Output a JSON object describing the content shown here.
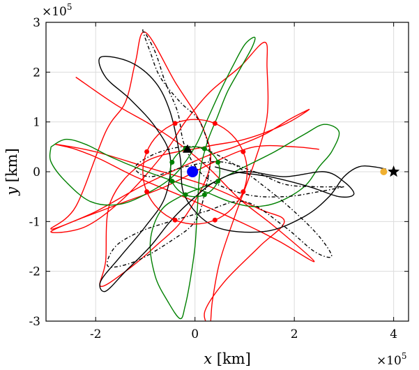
{
  "chart_data": {
    "type": "line",
    "title": "",
    "xlabel_var": "x",
    "xlabel_unit": "[km]",
    "ylabel_var": "y",
    "ylabel_unit": "[km]",
    "x_multiplier": "×10",
    "x_multiplier_exp": "5",
    "y_multiplier": "×10",
    "y_multiplier_exp": "5",
    "xlim": [
      -3,
      4.3
    ],
    "ylim": [
      -3,
      3
    ],
    "x_ticks": [
      -2,
      0,
      2,
      4
    ],
    "x_tick_labels": [
      "-2",
      "0",
      "2",
      "4"
    ],
    "y_ticks": [
      -3,
      -2,
      -1,
      0,
      1,
      2,
      3
    ],
    "y_tick_labels": [
      "-3",
      "-2",
      "-1",
      "0",
      "1",
      "2",
      "3"
    ],
    "grid": true,
    "series": [
      {
        "color": "#ff0000",
        "dash": "solid",
        "points": [
          [
            -2.4,
            1.9
          ],
          [
            -1.6,
            1.35
          ],
          [
            -0.9,
            0.95
          ],
          [
            -0.3,
            0.55
          ],
          [
            0.3,
            0.05
          ],
          [
            0.9,
            -0.55
          ],
          [
            1.6,
            -1.1
          ],
          [
            2.4,
            -1.8
          ],
          [
            1.7,
            -1.4
          ],
          [
            1.0,
            -1.05
          ],
          [
            0.0,
            -0.6
          ],
          [
            -1.2,
            -0.1
          ],
          [
            -1.9,
            0.25
          ],
          [
            -2.4,
            0.45
          ],
          [
            -2.8,
            0.55
          ],
          [
            -2.0,
            0.4
          ],
          [
            -1.0,
            0.1
          ],
          [
            0.3,
            -0.3
          ],
          [
            1.3,
            -0.75
          ],
          [
            1.8,
            -1.0
          ],
          [
            1.3,
            -1.5
          ],
          [
            0.6,
            -2.2
          ],
          [
            0.2,
            -2.8
          ],
          [
            0.3,
            -3.1
          ],
          [
            0.35,
            -2.6
          ],
          [
            0.5,
            -1.8
          ],
          [
            0.8,
            -0.9
          ],
          [
            1.2,
            0.2
          ],
          [
            1.45,
            1.1
          ],
          [
            1.45,
            2.1
          ],
          [
            1.4,
            2.6
          ],
          [
            0.9,
            2.1
          ],
          [
            0.3,
            1.6
          ],
          [
            -0.2,
            1.0
          ],
          [
            -0.6,
            0.4
          ],
          [
            -1.4,
            -0.5
          ],
          [
            -2.2,
            -1.1
          ],
          [
            -2.9,
            -1.2
          ],
          [
            -2.0,
            -0.8
          ],
          [
            -1.0,
            -0.25
          ],
          [
            0.2,
            0.3
          ],
          [
            0.8,
            0.5
          ],
          [
            1.4,
            0.75
          ],
          [
            1.9,
            1.05
          ],
          [
            2.3,
            1.25
          ],
          [
            1.8,
            0.95
          ],
          [
            1.0,
            0.65
          ],
          [
            0.2,
            0.5
          ],
          [
            -1.0,
            0.2
          ],
          [
            -1.7,
            -0.6
          ],
          [
            -1.8,
            -1.8
          ],
          [
            -1.9,
            -2.3
          ],
          [
            -1.4,
            -2.0
          ],
          [
            -0.8,
            -1.5
          ],
          [
            -0.2,
            -0.9
          ],
          [
            0.3,
            0.1
          ],
          [
            0.15,
            0.9
          ],
          [
            -0.4,
            1.8
          ],
          [
            -1.0,
            2.8
          ],
          [
            -1.2,
            2.2
          ],
          [
            -1.4,
            1.4
          ],
          [
            -1.8,
            0.8
          ],
          [
            -2.4,
            -0.7
          ],
          [
            -2.9,
            -1.15
          ],
          [
            -2.2,
            -0.9
          ],
          [
            -1.4,
            -0.6
          ],
          [
            -0.6,
            -0.3
          ],
          [
            0.4,
            0.2
          ],
          [
            1.2,
            0.5
          ],
          [
            2.0,
            0.5
          ],
          [
            2.5,
            0.45
          ]
        ]
      },
      {
        "color": "#008000",
        "dash": "solid",
        "points": [
          [
            -2.9,
            0.5
          ],
          [
            -2.6,
            0.65
          ],
          [
            -2.2,
            0.55
          ],
          [
            -1.7,
            0.3
          ],
          [
            -1.1,
            0.05
          ],
          [
            -0.4,
            -0.2
          ],
          [
            0.2,
            -0.4
          ],
          [
            0.7,
            -0.6
          ],
          [
            1.2,
            -0.7
          ],
          [
            1.7,
            -0.6
          ],
          [
            2.2,
            -0.3
          ],
          [
            2.5,
            0.1
          ],
          [
            2.75,
            0.4
          ],
          [
            2.9,
            0.8
          ],
          [
            2.6,
            0.95
          ],
          [
            2.2,
            0.75
          ],
          [
            1.6,
            0.4
          ],
          [
            0.9,
            0.05
          ],
          [
            0.3,
            -0.25
          ],
          [
            -0.3,
            -0.5
          ],
          [
            -0.7,
            -0.8
          ],
          [
            -0.9,
            -1.4
          ],
          [
            -0.8,
            -2.1
          ],
          [
            -0.55,
            -2.6
          ],
          [
            -0.3,
            -2.95
          ],
          [
            -0.2,
            -2.7
          ],
          [
            -0.1,
            -2.2
          ],
          [
            0.0,
            -1.5
          ],
          [
            0.05,
            -0.7
          ],
          [
            0.1,
            0.0
          ],
          [
            0.25,
            0.6
          ],
          [
            0.45,
            1.1
          ],
          [
            0.65,
            1.6
          ],
          [
            0.9,
            2.05
          ],
          [
            1.15,
            2.5
          ],
          [
            1.2,
            2.7
          ],
          [
            1.0,
            2.55
          ],
          [
            0.75,
            2.1
          ],
          [
            0.5,
            1.6
          ],
          [
            0.25,
            1.05
          ],
          [
            0.0,
            0.5
          ],
          [
            -0.4,
            -0.05
          ],
          [
            -0.9,
            -0.4
          ],
          [
            -1.5,
            -0.65
          ],
          [
            -2.1,
            -0.6
          ],
          [
            -2.6,
            -0.2
          ],
          [
            -2.9,
            0.2
          ],
          [
            -2.9,
            0.5
          ]
        ]
      },
      {
        "color": "#000000",
        "dash": "solid",
        "points": [
          [
            3.85,
            0.05
          ],
          [
            3.6,
            0.1
          ],
          [
            3.3,
            0.1
          ],
          [
            3.0,
            -0.1
          ],
          [
            2.7,
            -0.5
          ],
          [
            2.2,
            -0.9
          ],
          [
            1.4,
            -1.2
          ],
          [
            0.4,
            -1.1
          ],
          [
            -0.2,
            -0.5
          ],
          [
            -0.3,
            0.3
          ],
          [
            -0.5,
            1.2
          ],
          [
            -0.8,
            1.8
          ],
          [
            -1.3,
            2.2
          ],
          [
            -1.9,
            2.3
          ],
          [
            -1.8,
            1.9
          ],
          [
            -1.3,
            1.45
          ],
          [
            -0.8,
            0.9
          ],
          [
            -0.5,
            0.3
          ],
          [
            -0.6,
            -0.5
          ],
          [
            -1.0,
            -1.1
          ],
          [
            -1.5,
            -1.7
          ],
          [
            -1.9,
            -2.2
          ],
          [
            -1.8,
            -2.4
          ],
          [
            -1.4,
            -2.0
          ],
          [
            -0.9,
            -1.5
          ],
          [
            -0.5,
            -1.0
          ],
          [
            -0.1,
            -0.6
          ],
          [
            0.4,
            -0.2
          ],
          [
            1.0,
            0.0
          ],
          [
            1.8,
            -0.1
          ],
          [
            2.6,
            0.0
          ],
          [
            3.0,
            -0.2
          ],
          [
            3.2,
            -0.45
          ],
          [
            2.9,
            -0.5
          ],
          [
            2.3,
            -0.3
          ],
          [
            1.5,
            -0.1
          ],
          [
            0.8,
            0.0
          ],
          [
            0.4,
            0.1
          ]
        ]
      },
      {
        "color": "#000000",
        "dash": "dashdot",
        "points": [
          [
            3.0,
            -0.3
          ],
          [
            2.5,
            -0.4
          ],
          [
            1.8,
            -0.5
          ],
          [
            1.0,
            -0.45
          ],
          [
            0.2,
            -0.1
          ],
          [
            -0.2,
            0.5
          ],
          [
            -0.35,
            1.2
          ],
          [
            -0.6,
            1.8
          ],
          [
            -0.8,
            2.4
          ],
          [
            -1.05,
            2.85
          ],
          [
            -0.9,
            2.4
          ],
          [
            -0.7,
            1.9
          ],
          [
            -0.3,
            1.4
          ],
          [
            0.1,
            1.0
          ],
          [
            0.3,
            0.3
          ],
          [
            0.2,
            -0.4
          ],
          [
            0.0,
            -1.0
          ],
          [
            -0.5,
            -1.4
          ],
          [
            -1.2,
            -1.8
          ],
          [
            -1.75,
            -1.9
          ],
          [
            -1.6,
            -1.5
          ],
          [
            -1.1,
            -1.2
          ],
          [
            -0.5,
            -1.0
          ],
          [
            0.2,
            -0.8
          ],
          [
            1.0,
            -0.6
          ],
          [
            1.8,
            -1.1
          ],
          [
            2.4,
            -1.6
          ],
          [
            2.75,
            -1.7
          ],
          [
            2.5,
            -1.3
          ],
          [
            2.0,
            -0.8
          ],
          [
            1.4,
            -0.3
          ],
          [
            0.7,
            0.2
          ],
          [
            0.0,
            0.5
          ],
          [
            -0.7,
            0.4
          ],
          [
            -1.2,
            0.1
          ],
          [
            -0.9,
            -0.1
          ],
          [
            -0.2,
            0.1
          ],
          [
            0.5,
            0.2
          ],
          [
            1.2,
            0.0
          ],
          [
            1.8,
            -0.25
          ],
          [
            2.4,
            -0.3
          ],
          [
            3.0,
            -0.3
          ]
        ]
      }
    ],
    "circle_orbits": [
      {
        "color": "#008000",
        "radius": 0.5,
        "marker_count": 8
      },
      {
        "color": "#ff0000",
        "radius": 1.05,
        "marker_count": 8
      }
    ],
    "markers": [
      {
        "name": "central-body",
        "x": -0.05,
        "y": 0.0,
        "color": "#0000ff",
        "shape": "circle",
        "size": "large"
      },
      {
        "name": "start-triangle",
        "x": -0.15,
        "y": 0.45,
        "color": "#000000",
        "shape": "triangle"
      },
      {
        "name": "moon",
        "x": 3.8,
        "y": 0.0,
        "color": "#f0b030",
        "shape": "circle",
        "size": "medium"
      },
      {
        "name": "target-star",
        "x": 4.0,
        "y": 0.0,
        "color": "#000000",
        "shape": "star"
      }
    ]
  }
}
